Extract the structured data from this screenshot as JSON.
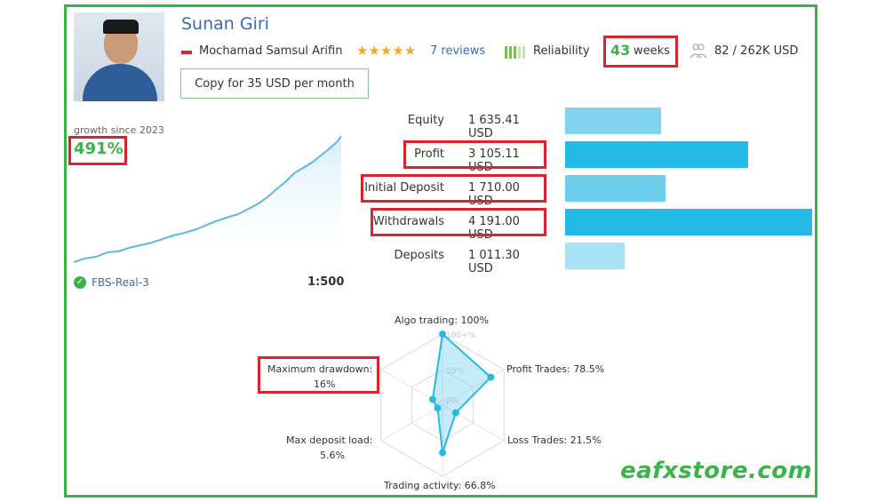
{
  "profile": {
    "name": "Sunan Giri",
    "owner": "Mochamad Samsul Arifin",
    "stars": "★★★★★",
    "reviews": "7 reviews",
    "reliability_label": "Reliability",
    "weeks_value": "43",
    "weeks_label": "weeks",
    "subscribers": "82 / 262K USD",
    "copy_button": "Copy for 35 USD per month"
  },
  "growth": {
    "label": "growth since 2023",
    "value": "491%"
  },
  "account": {
    "server": "FBS-Real-3",
    "leverage": "1:500"
  },
  "stats": [
    {
      "label": "Equity",
      "value": "1 635.41 USD",
      "amount": 1635.41,
      "color": "#7fd3ef"
    },
    {
      "label": "Profit",
      "value": "3 105.11 USD",
      "amount": 3105.11,
      "color": "#25b9e6"
    },
    {
      "label": "Initial Deposit",
      "value": "1 710.00 USD",
      "amount": 1710.0,
      "color": "#6fcdec"
    },
    {
      "label": "Withdrawals",
      "value": "4 191.00 USD",
      "amount": 4191.0,
      "color": "#25b9e6"
    },
    {
      "label": "Deposits",
      "value": "1 011.30 USD",
      "amount": 1011.3,
      "color": "#a9e2f5"
    }
  ],
  "radar": {
    "algo_trading": "Algo trading: 100%",
    "profit_trades": "Profit Trades: 78.5%",
    "loss_trades": "Loss Trades: 21.5%",
    "trading_activity": "Trading activity: 66.8%",
    "max_deposit_load_1": "Max deposit load:",
    "max_deposit_load_2": "5.6%",
    "max_drawdown_1": "Maximum drawdown:",
    "max_drawdown_2": "16%",
    "scale_100": "100+%",
    "scale_50": "50%",
    "scale_0": "0%",
    "values": [
      100,
      78.5,
      21.5,
      66.8,
      5.6,
      16
    ]
  },
  "watermark": "eafxstore.com",
  "colors": {
    "frame": "#3bb34a",
    "highlight": "#d9232d",
    "link": "#3a6ab4",
    "bar_dark": "#25b9e6",
    "bar_light": "#7fd3ef"
  }
}
